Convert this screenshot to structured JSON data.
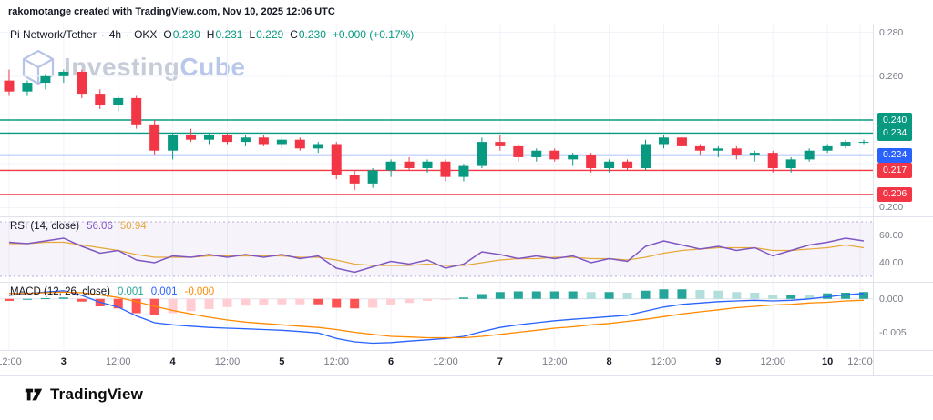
{
  "attribution": "rakomotange created with TradingView.com, Nov 10, 2025 12:06 UTC",
  "watermark": {
    "part1": "Investing",
    "part2": "Cube"
  },
  "header": {
    "title": "Pi Network/Tether",
    "separator": "·",
    "interval": "4h",
    "exchange": "OKX",
    "o_label": "O",
    "o": "0.230",
    "h_label": "H",
    "h": "0.231",
    "l_label": "L",
    "l": "0.229",
    "c_label": "C",
    "c": "0.230",
    "change": "+0.000 (+0.17%)"
  },
  "colors": {
    "up": "#089981",
    "down": "#f23645",
    "level_blue": "#2962ff",
    "rsi": "#7e57c2",
    "rsi_ma": "#e8a838",
    "macd_line": "#2962ff",
    "signal_line": "#ff8a00",
    "hist_grow_above": "#26a69a",
    "hist_fall_above": "#b2dfdb",
    "hist_fall_below": "#ff5252",
    "hist_grow_below": "#ffcdd2"
  },
  "price_axis": {
    "labels": [
      {
        "text": "0.280",
        "price": 0.28
      },
      {
        "text": "0.260",
        "price": 0.26
      },
      {
        "text": "0.200",
        "price": 0.2
      }
    ],
    "badges": [
      {
        "text": "0.240",
        "price": 0.24,
        "color": "#089981"
      },
      {
        "text": "0.234",
        "price": 0.234,
        "color": "#089981"
      },
      {
        "text": "0.224",
        "price": 0.224,
        "color": "#2962ff"
      },
      {
        "text": "0.217",
        "price": 0.217,
        "color": "#f23645"
      },
      {
        "text": "0.206",
        "price": 0.206,
        "color": "#f23645"
      }
    ]
  },
  "rsi": {
    "label": "RSI (14, close)",
    "value": "56.06",
    "ma_value": "50.94",
    "axis_labels": [
      {
        "text": "60.00",
        "value": 60
      },
      {
        "text": "40.00",
        "value": 40
      }
    ]
  },
  "macd": {
    "label": "MACD (12, 26, close)",
    "hist_value": "0.001",
    "macd_value": "0.001",
    "signal_value": "-0.000",
    "axis_labels": [
      {
        "text": "0.000",
        "value": 0
      },
      {
        "text": "-0.005",
        "value": -0.005
      }
    ]
  },
  "time_axis": [
    {
      "t": "12:00",
      "day": false
    },
    {
      "t": "3",
      "day": true
    },
    {
      "t": "12:00",
      "day": false
    },
    {
      "t": "4",
      "day": true
    },
    {
      "t": "12:00",
      "day": false
    },
    {
      "t": "5",
      "day": true
    },
    {
      "t": "12:00",
      "day": false
    },
    {
      "t": "6",
      "day": true
    },
    {
      "t": "12:00",
      "day": false
    },
    {
      "t": "7",
      "day": true
    },
    {
      "t": "12:00",
      "day": false
    },
    {
      "t": "8",
      "day": true
    },
    {
      "t": "12:00",
      "day": false
    },
    {
      "t": "9",
      "day": true
    },
    {
      "t": "12:00",
      "day": false
    },
    {
      "t": "10",
      "day": true
    },
    {
      "t": "12:00",
      "day": false
    }
  ],
  "footer": {
    "brand": "TradingView"
  },
  "chart_data": {
    "type": "candlestick",
    "pair": "Pi Network/Tether",
    "exchange": "OKX",
    "interval": "4h",
    "price_range": [
      0.196,
      0.284
    ],
    "price_gridlines": [
      0.28,
      0.26,
      0.24,
      0.22,
      0.2
    ],
    "levels": [
      0.24,
      0.234,
      0.224,
      0.217,
      0.206
    ],
    "candles": [
      [
        0.258,
        0.263,
        0.251,
        0.253
      ],
      [
        0.253,
        0.258,
        0.251,
        0.257
      ],
      [
        0.257,
        0.261,
        0.254,
        0.26
      ],
      [
        0.26,
        0.263,
        0.257,
        0.262
      ],
      [
        0.262,
        0.263,
        0.25,
        0.252
      ],
      [
        0.252,
        0.254,
        0.245,
        0.247
      ],
      [
        0.247,
        0.251,
        0.244,
        0.25
      ],
      [
        0.25,
        0.251,
        0.236,
        0.238
      ],
      [
        0.238,
        0.24,
        0.224,
        0.226
      ],
      [
        0.226,
        0.234,
        0.222,
        0.233
      ],
      [
        0.233,
        0.236,
        0.23,
        0.231
      ],
      [
        0.231,
        0.234,
        0.229,
        0.233
      ],
      [
        0.233,
        0.234,
        0.229,
        0.23
      ],
      [
        0.23,
        0.233,
        0.228,
        0.232
      ],
      [
        0.232,
        0.233,
        0.228,
        0.229
      ],
      [
        0.229,
        0.232,
        0.227,
        0.231
      ],
      [
        0.231,
        0.232,
        0.226,
        0.227
      ],
      [
        0.227,
        0.23,
        0.225,
        0.229
      ],
      [
        0.229,
        0.23,
        0.213,
        0.215
      ],
      [
        0.215,
        0.217,
        0.208,
        0.211
      ],
      [
        0.211,
        0.218,
        0.209,
        0.217
      ],
      [
        0.217,
        0.222,
        0.214,
        0.221
      ],
      [
        0.221,
        0.223,
        0.217,
        0.218
      ],
      [
        0.218,
        0.222,
        0.216,
        0.221
      ],
      [
        0.221,
        0.222,
        0.212,
        0.214
      ],
      [
        0.214,
        0.22,
        0.212,
        0.219
      ],
      [
        0.219,
        0.232,
        0.218,
        0.23
      ],
      [
        0.23,
        0.233,
        0.226,
        0.228
      ],
      [
        0.228,
        0.229,
        0.221,
        0.223
      ],
      [
        0.223,
        0.227,
        0.221,
        0.226
      ],
      [
        0.226,
        0.227,
        0.221,
        0.222
      ],
      [
        0.222,
        0.225,
        0.219,
        0.224
      ],
      [
        0.224,
        0.225,
        0.216,
        0.218
      ],
      [
        0.218,
        0.222,
        0.216,
        0.221
      ],
      [
        0.221,
        0.222,
        0.217,
        0.218
      ],
      [
        0.218,
        0.231,
        0.217,
        0.229
      ],
      [
        0.229,
        0.233,
        0.227,
        0.232
      ],
      [
        0.232,
        0.233,
        0.227,
        0.228
      ],
      [
        0.228,
        0.229,
        0.224,
        0.226
      ],
      [
        0.226,
        0.228,
        0.223,
        0.227
      ],
      [
        0.227,
        0.228,
        0.222,
        0.224
      ],
      [
        0.224,
        0.226,
        0.221,
        0.225
      ],
      [
        0.225,
        0.226,
        0.216,
        0.218
      ],
      [
        0.218,
        0.223,
        0.216,
        0.222
      ],
      [
        0.222,
        0.227,
        0.221,
        0.226
      ],
      [
        0.226,
        0.229,
        0.225,
        0.228
      ],
      [
        0.228,
        0.231,
        0.227,
        0.23
      ],
      [
        0.23,
        0.231,
        0.229,
        0.23
      ]
    ],
    "rsi_range": [
      26,
      74
    ],
    "rsi_band": [
      30,
      70
    ],
    "rsi": [
      55,
      54,
      56,
      58,
      52,
      47,
      49,
      42,
      40,
      45,
      44,
      46,
      44,
      46,
      44,
      46,
      43,
      45,
      36,
      33,
      37,
      41,
      39,
      42,
      36,
      39,
      48,
      46,
      43,
      45,
      43,
      45,
      40,
      43,
      41,
      52,
      56,
      53,
      50,
      52,
      49,
      51,
      45,
      49,
      53,
      55,
      58,
      56
    ],
    "rsi_ma": [
      54,
      54,
      55,
      55,
      53,
      51,
      49,
      46,
      44,
      44,
      44,
      45,
      45,
      45,
      45,
      45,
      44,
      44,
      42,
      39,
      38,
      38,
      38,
      39,
      38,
      38,
      40,
      42,
      43,
      43,
      44,
      44,
      43,
      43,
      42,
      44,
      47,
      49,
      50,
      51,
      51,
      51,
      49,
      49,
      50,
      51,
      53,
      51
    ],
    "macd_range": [
      -0.0075,
      0.0025
    ],
    "macd": [
      0.0005,
      0.0008,
      0.001,
      0.0012,
      0.0005,
      -0.0005,
      -0.0012,
      -0.0025,
      -0.0035,
      -0.0038,
      -0.004,
      -0.0042,
      -0.0043,
      -0.0044,
      -0.0045,
      -0.0046,
      -0.0048,
      -0.005,
      -0.0058,
      -0.0063,
      -0.0065,
      -0.0064,
      -0.0062,
      -0.006,
      -0.0058,
      -0.0055,
      -0.0048,
      -0.0042,
      -0.0038,
      -0.0035,
      -0.0032,
      -0.003,
      -0.0028,
      -0.0026,
      -0.0024,
      -0.0018,
      -0.0012,
      -0.0008,
      -0.0006,
      -0.0004,
      -0.0003,
      -0.0002,
      -0.0003,
      -0.0002,
      0.0,
      0.0003,
      0.0006,
      0.0008
    ],
    "macd_signal": [
      0.0008,
      0.0008,
      0.0009,
      0.001,
      0.0009,
      0.0006,
      0.0002,
      -0.0004,
      -0.0011,
      -0.0017,
      -0.0022,
      -0.0027,
      -0.0031,
      -0.0034,
      -0.0036,
      -0.0038,
      -0.004,
      -0.0042,
      -0.0045,
      -0.0049,
      -0.0052,
      -0.0055,
      -0.0056,
      -0.0057,
      -0.0057,
      -0.0057,
      -0.0055,
      -0.0052,
      -0.0049,
      -0.0046,
      -0.0043,
      -0.0041,
      -0.0038,
      -0.0036,
      -0.0033,
      -0.003,
      -0.0026,
      -0.0022,
      -0.0019,
      -0.0016,
      -0.0013,
      -0.0011,
      -0.0009,
      -0.0008,
      -0.0006,
      -0.0005,
      -0.0003,
      -0.0002
    ]
  }
}
